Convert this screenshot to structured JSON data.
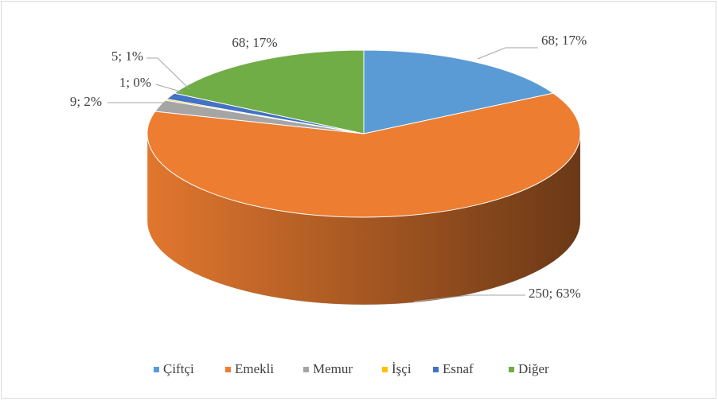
{
  "chart_data": {
    "type": "pie",
    "categories": [
      "Çiftçi",
      "Emekli",
      "Memur",
      "İşçi",
      "Esnaf",
      "Diğer"
    ],
    "values": [
      68,
      250,
      9,
      1,
      5,
      68
    ],
    "value_labels": [
      "68; 17%",
      "250; 63%",
      "9; 2%",
      "1; 0%",
      "5; 1%",
      "68; 17%"
    ],
    "colors": [
      "#5b9bd5",
      "#ed7d31",
      "#a5a5a5",
      "#ffc000",
      "#4472c4",
      "#70ad47"
    ],
    "legend": "bottom"
  }
}
